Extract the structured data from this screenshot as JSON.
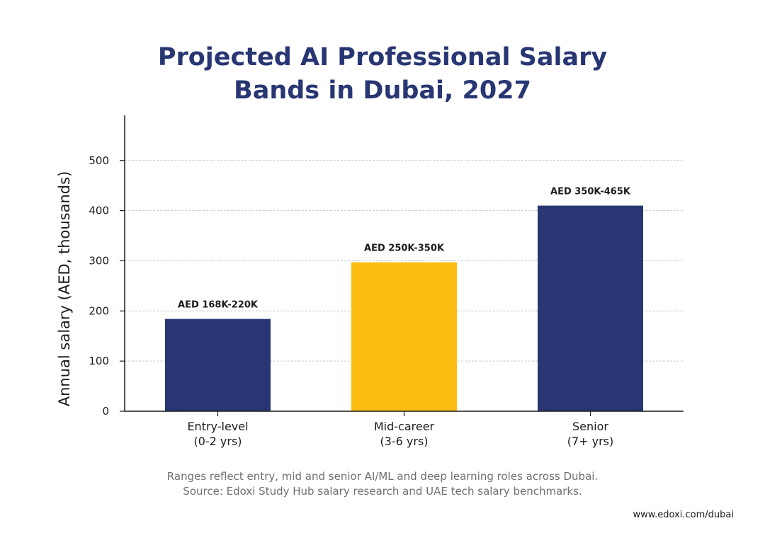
{
  "header": {
    "title_line1": "Projected AI Professional Salary",
    "title_line2": "Bands in Dubai, 2027"
  },
  "chart_data": {
    "type": "bar",
    "title": "Projected AI Professional Salary Bands in Dubai, 2027",
    "xlabel": "",
    "ylabel": "Annual salary (AED, thousands)",
    "ylim": [
      0,
      590
    ],
    "yticks": [
      0,
      100,
      200,
      300,
      400,
      500
    ],
    "grid": true,
    "categories": [
      [
        "Entry-level",
        "(0-2 yrs)"
      ],
      [
        "Mid-career",
        "(3-6 yrs)"
      ],
      [
        "Senior",
        "(7+ yrs)"
      ]
    ],
    "values": [
      184,
      297,
      410
    ],
    "data_labels": [
      "AED 168K-220K",
      "AED 250K-350K",
      "AED 350K-465K"
    ],
    "colors": [
      "#283673",
      "#fcbd12",
      "#283673"
    ]
  },
  "footer": {
    "note_line1": "Ranges reflect entry, mid and senior AI/ML and deep learning roles across Dubai.",
    "note_line2": "Source: Edoxi Study Hub salary research and UAE tech salary benchmarks.",
    "website": "www.edoxi.com/dubai"
  }
}
